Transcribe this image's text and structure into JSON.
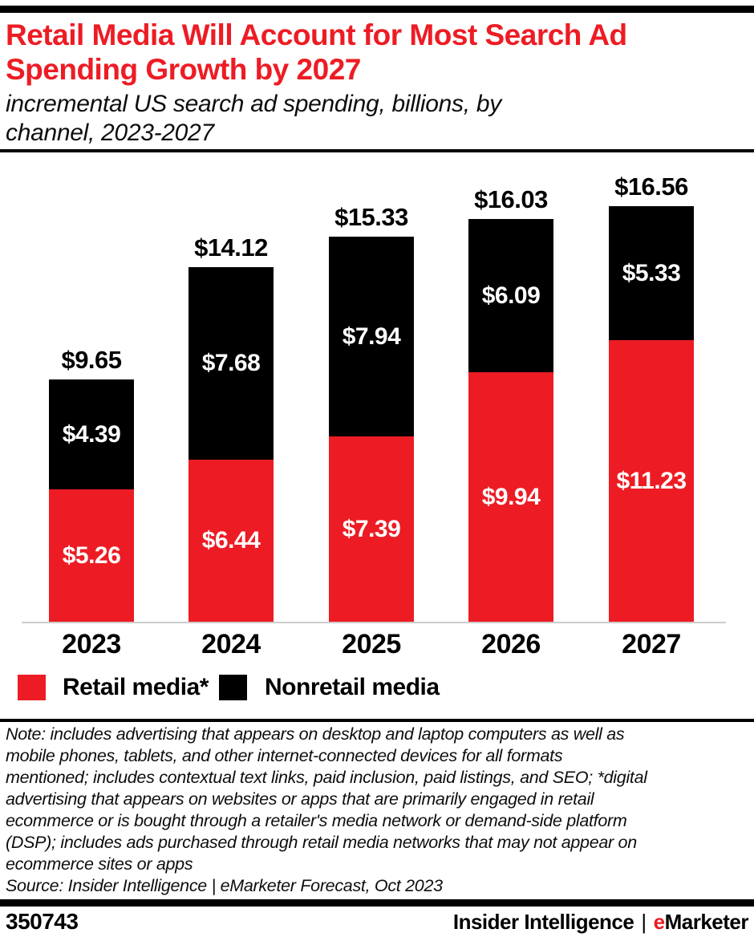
{
  "header": {
    "title_lines": [
      "Retail Media Will Account for Most Search Ad",
      "Spending Growth by 2027"
    ],
    "subtitle_lines": [
      "incremental US search ad spending, billions, by",
      "channel, 2023-2027"
    ]
  },
  "chart_data": {
    "type": "bar",
    "stacked": true,
    "title": "Retail Media Will Account for Most Search Ad Spending Growth by 2027",
    "subtitle": "incremental US search ad spending, billions, by channel, 2023-2027",
    "categories": [
      "2023",
      "2024",
      "2025",
      "2026",
      "2027"
    ],
    "series": [
      {
        "name": "Retail media*",
        "color": "#ed1c24",
        "values": [
          5.26,
          6.44,
          7.39,
          9.94,
          11.23
        ],
        "labels": [
          "$5.26",
          "$6.44",
          "$7.39",
          "$9.94",
          "$11.23"
        ]
      },
      {
        "name": "Nonretail media",
        "color": "#000000",
        "values": [
          4.39,
          7.68,
          7.94,
          6.09,
          5.33
        ],
        "labels": [
          "$4.39",
          "$7.68",
          "$7.94",
          "$6.09",
          "$5.33"
        ]
      }
    ],
    "totals": [
      9.65,
      14.12,
      15.33,
      16.03,
      16.56
    ],
    "total_labels": [
      "$9.65",
      "$14.12",
      "$15.33",
      "$16.03",
      "$16.56"
    ],
    "unit": "US$ billions",
    "xlabel": "",
    "ylabel": "",
    "ylim": [
      0,
      18.5
    ],
    "grid": false,
    "legend_position": "bottom"
  },
  "note": {
    "lines": [
      "Note: includes advertising that appears on desktop and laptop computers as well as",
      "mobile phones, tablets, and other internet-connected devices for all formats",
      "mentioned; includes contextual text links, paid inclusion, paid listings, and SEO; *digital",
      "advertising that appears on websites or apps that are primarily engaged in retail",
      "ecommerce or is bought through a retailer's media network or demand-side platform",
      "(DSP); includes ads purchased through retail media networks that may not appear on",
      "ecommerce sites or apps"
    ],
    "source": "Source: Insider Intelligence | eMarketer Forecast, Oct 2023"
  },
  "footer": {
    "chart_id": "350743",
    "brand_left": "Insider Intelligence",
    "separator": "|",
    "brand_e": "e",
    "brand_rest": "Marketer"
  },
  "colors": {
    "accent_red": "#ed1c24",
    "bar_black": "#000000",
    "axis_gray": "#cccccc"
  }
}
